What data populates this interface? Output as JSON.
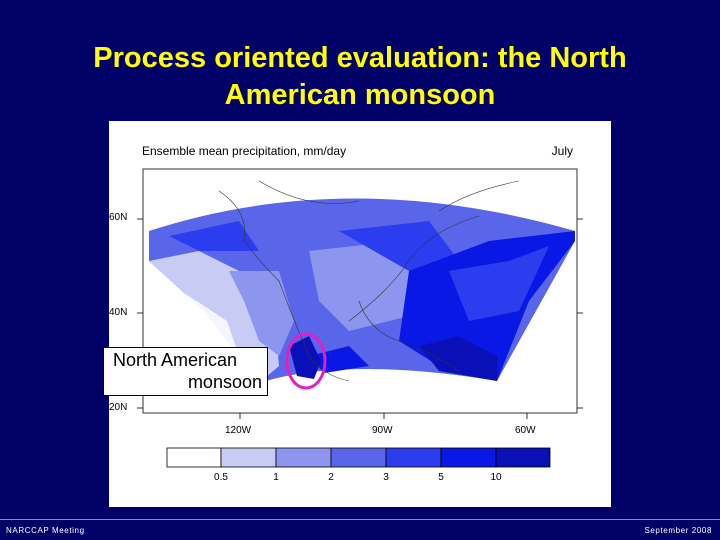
{
  "slide": {
    "title": "Process oriented evaluation: the North American monsoon",
    "footer_left": "NARCCAP Meeting",
    "footer_right": "September 2008"
  },
  "map": {
    "title": "Ensemble mean precipitation, mm/day",
    "month": "July",
    "lat_labels": [
      "60N",
      "40N",
      "20N"
    ],
    "lon_labels": [
      "120W",
      "90W",
      "60W"
    ],
    "colorbar": {
      "ticks": [
        "0.5",
        "1",
        "2",
        "3",
        "5",
        "10"
      ],
      "colors": [
        "#ffffff",
        "#c8ccf4",
        "#8c96ee",
        "#5a66ea",
        "#2c3df0",
        "#0a18e6",
        "#0a10b8"
      ]
    },
    "callout": {
      "line1": "North American",
      "line2": "monsoon"
    },
    "highlight_color": "#e020c0"
  }
}
